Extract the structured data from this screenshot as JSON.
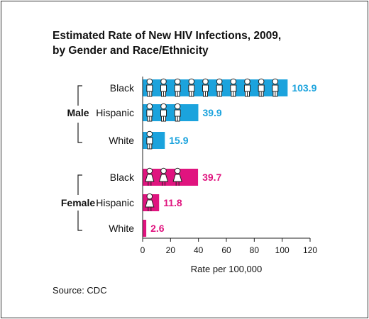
{
  "chart_data": {
    "type": "bar",
    "orientation": "horizontal",
    "title_line1": "Estimated Rate of New HIV Infections, 2009,",
    "title_line2": "by Gender and Race/Ethnicity",
    "xlabel": "Rate per 100,000",
    "xlim": [
      0,
      120
    ],
    "xticks": [
      "0",
      "20",
      "40",
      "60",
      "80",
      "100",
      "120"
    ],
    "source": "Source: CDC",
    "colors": {
      "male": "#1ba3dd",
      "female": "#e0147f",
      "icon_fill": "#ffffff",
      "icon_stroke": "#222222"
    },
    "icons": {
      "male": "male-person-icon",
      "female": "female-person-icon"
    },
    "groups": [
      {
        "name": "Male",
        "color_key": "male",
        "bars": [
          {
            "category": "Black",
            "value": 103.9,
            "label": "103.9"
          },
          {
            "category": "Hispanic",
            "value": 39.9,
            "label": "39.9"
          },
          {
            "category": "White",
            "value": 15.9,
            "label": "15.9"
          }
        ]
      },
      {
        "name": "Female",
        "color_key": "female",
        "bars": [
          {
            "category": "Black",
            "value": 39.7,
            "label": "39.7"
          },
          {
            "category": "Hispanic",
            "value": 11.8,
            "label": "11.8"
          },
          {
            "category": "White",
            "value": 2.6,
            "label": "2.6"
          }
        ]
      }
    ]
  }
}
